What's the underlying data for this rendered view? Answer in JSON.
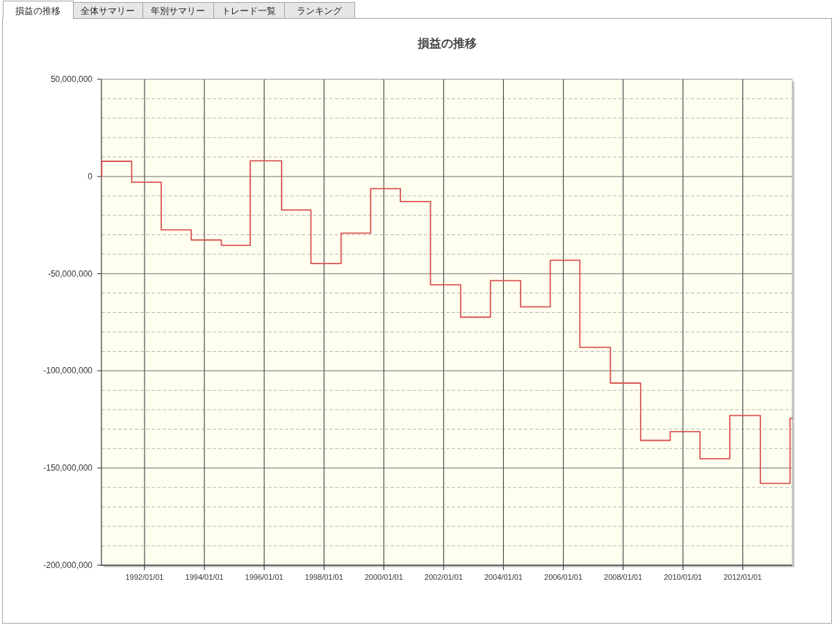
{
  "chart_data": {
    "type": "step",
    "title": "損益の推移",
    "annotations": [
      "損益の推移",
      "全体サマリー",
      "年別サマリー",
      "トレード一覧",
      "ランキング"
    ],
    "x": [
      "1990-07-25",
      "1990-07-27",
      "1991-07-28",
      "1992-07-23",
      "1993-07-24",
      "1994-07-27",
      "1995-07-15",
      "1996-08-01",
      "1997-07-25",
      "1998-07-28",
      "1999-07-24",
      "2000-07-21",
      "2001-07-24",
      "2002-07-27",
      "2003-07-26",
      "2004-07-28",
      "2005-07-25",
      "2006-07-22",
      "2007-07-30",
      "2008-08-02",
      "2009-07-29",
      "2010-07-28",
      "2011-07-26",
      "2012-08-03",
      "2013-07-31",
      "2013-08-28"
    ],
    "series": [
      {
        "color": "#d9534f",
        "values": [
          0,
          7800000,
          -3000000,
          -27500000,
          -32700000,
          -35400000,
          8000000,
          -17300000,
          -44800000,
          -29200000,
          -6300000,
          -12900000,
          -55700000,
          -72400000,
          -53600000,
          -67100000,
          -43100000,
          -87900000,
          -106300000,
          -135800000,
          -131300000,
          -145200000,
          -123000000,
          -157900000,
          -124400000,
          -124400000
        ]
      }
    ],
    "xlim": [
      "1990-07-24",
      "2013-08-28"
    ],
    "ylim": [
      -200000000,
      50000000
    ],
    "xticks": [
      {
        "value": "1992-01-01",
        "label": "1992/01/01"
      },
      {
        "value": "1994-01-01",
        "label": "1994/01/01"
      },
      {
        "value": "1996-01-01",
        "label": "1996/01/01"
      },
      {
        "value": "1998-01-01",
        "label": "1998/01/01"
      },
      {
        "value": "2000-01-01",
        "label": "2000/01/01"
      },
      {
        "value": "2002-01-01",
        "label": "2002/01/01"
      },
      {
        "value": "2004-01-01",
        "label": "2004/01/01"
      },
      {
        "value": "2006-01-01",
        "label": "2006/01/01"
      },
      {
        "value": "2008-01-01",
        "label": "2008/01/01"
      },
      {
        "value": "2010-01-01",
        "label": "2010/01/01"
      },
      {
        "value": "2012-01-01",
        "label": "2012/01/01"
      }
    ],
    "yticks": [
      {
        "value": 50000000,
        "label": "50,000,000"
      },
      {
        "value": 40000000,
        "label": null
      },
      {
        "value": 30000000,
        "label": null
      },
      {
        "value": 20000000,
        "label": null
      },
      {
        "value": 10000000,
        "label": null
      },
      0,
      {
        "value": -10000000,
        "label": null
      },
      {
        "value": -20000000,
        "label": null
      },
      {
        "value": -30000000,
        "label": null
      },
      {
        "value": -40000000,
        "label": null
      },
      {
        "value": -50000000,
        "label": "-50,000,000"
      },
      {
        "value": -60000000,
        "label": null
      },
      {
        "value": -70000000,
        "label": null
      },
      {
        "value": -80000000,
        "label": null
      },
      {
        "value": -90000000,
        "label": null
      },
      {
        "value": -100000000,
        "label": "-100,000,000"
      },
      {
        "value": -110000000,
        "label": null
      },
      {
        "value": -120000000,
        "label": null
      },
      {
        "value": -130000000,
        "label": null
      },
      {
        "value": -140000000,
        "label": null
      },
      {
        "value": -150000000,
        "label": "-150,000,000"
      },
      {
        "value": -160000000,
        "label": null
      },
      {
        "value": -170000000,
        "label": null
      },
      {
        "value": -180000000,
        "label": null
      },
      {
        "value": -190000000,
        "label": null
      },
      {
        "value": -200000000,
        "label": "-200,000,000"
      }
    ],
    "grid": true
  }
}
